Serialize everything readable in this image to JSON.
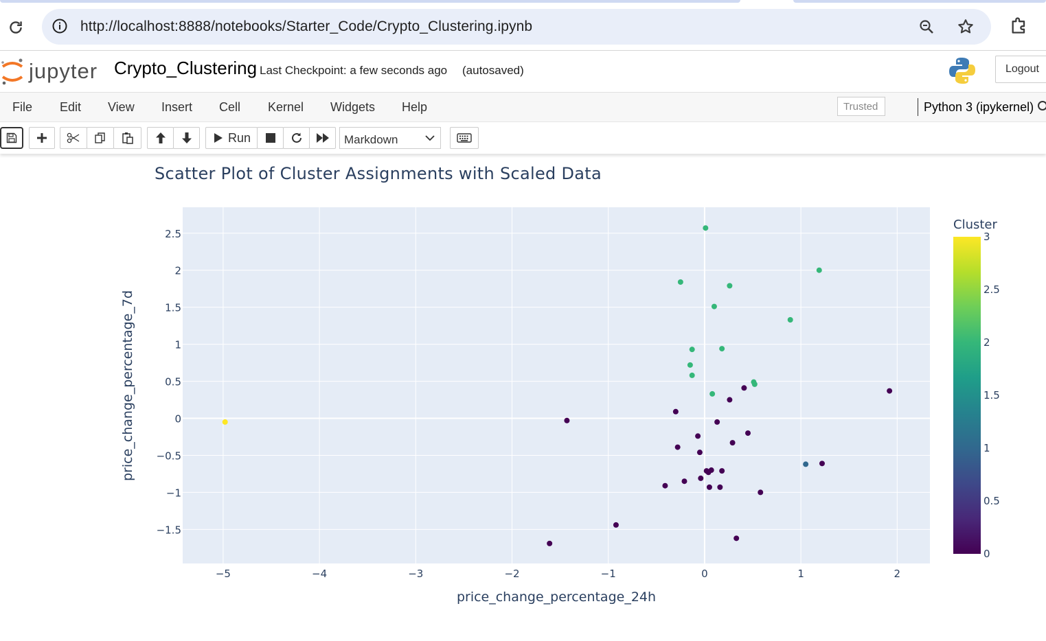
{
  "browser": {
    "url": "http://localhost:8888/notebooks/Starter_Code/Crypto_Clustering.ipynb"
  },
  "jupyter": {
    "logo_text": "jupyter",
    "notebook_title": "Crypto_Clustering",
    "checkpoint": "Last Checkpoint: a few seconds ago",
    "autosaved": "(autosaved)",
    "logout_label": "Logout"
  },
  "menu": {
    "items": [
      "File",
      "Edit",
      "View",
      "Insert",
      "Cell",
      "Kernel",
      "Widgets",
      "Help"
    ],
    "trusted_label": "Trusted",
    "kernel_name": "Python 3 (ipykernel)"
  },
  "toolbar": {
    "run_label": "Run",
    "cell_type": "Markdown"
  },
  "colors": {
    "plot_bg": "#e5ecf6",
    "title": "#2a3f5f",
    "cluster_0": "#440154",
    "cluster_1": "#31688e",
    "cluster_2": "#35b779",
    "cluster_3": "#fde725"
  },
  "chart_data": {
    "type": "scatter",
    "title": "Scatter Plot of Cluster Assignments with Scaled Data",
    "xlabel": "price_change_percentage_24h",
    "ylabel": "price_change_percentage_7d",
    "xlim": [
      -5.42,
      2.34
    ],
    "ylim": [
      -1.96,
      2.85
    ],
    "x_ticks": [
      -5,
      -4,
      -3,
      -2,
      -1,
      0,
      1,
      2
    ],
    "x_tick_labels": [
      "−5",
      "−4",
      "−3",
      "−2",
      "−1",
      "0",
      "1",
      "2"
    ],
    "y_ticks": [
      -1.5,
      -1,
      -0.5,
      0,
      0.5,
      1,
      1.5,
      2,
      2.5
    ],
    "y_tick_labels": [
      "−1.5",
      "−1",
      "−0.5",
      "0",
      "0.5",
      "1",
      "1.5",
      "2",
      "2.5"
    ],
    "grid": true,
    "colorbar": {
      "title": "Cluster",
      "range": [
        0,
        3
      ],
      "ticks": [
        0,
        0.5,
        1,
        1.5,
        2,
        2.5,
        3
      ],
      "tick_labels": [
        "0",
        "0.5",
        "1",
        "1.5",
        "2",
        "2.5",
        "3"
      ],
      "colorscale": "viridis"
    },
    "points": [
      {
        "x": 0.01,
        "y": 2.57,
        "cluster": 2
      },
      {
        "x": 1.19,
        "y": 2.0,
        "cluster": 2
      },
      {
        "x": -0.25,
        "y": 1.84,
        "cluster": 2
      },
      {
        "x": 0.26,
        "y": 1.79,
        "cluster": 2
      },
      {
        "x": 0.1,
        "y": 1.51,
        "cluster": 2
      },
      {
        "x": 0.89,
        "y": 1.33,
        "cluster": 2
      },
      {
        "x": -0.13,
        "y": 0.93,
        "cluster": 2
      },
      {
        "x": 0.18,
        "y": 0.94,
        "cluster": 2
      },
      {
        "x": -0.15,
        "y": 0.72,
        "cluster": 2
      },
      {
        "x": -0.13,
        "y": 0.58,
        "cluster": 2
      },
      {
        "x": 0.51,
        "y": 0.49,
        "cluster": 2
      },
      {
        "x": 0.52,
        "y": 0.46,
        "cluster": 2
      },
      {
        "x": 0.08,
        "y": 0.33,
        "cluster": 2
      },
      {
        "x": -4.98,
        "y": -0.05,
        "cluster": 3
      },
      {
        "x": 1.05,
        "y": -0.62,
        "cluster": 1
      },
      {
        "x": 0.41,
        "y": 0.41,
        "cluster": 0
      },
      {
        "x": 0.26,
        "y": 0.25,
        "cluster": 0
      },
      {
        "x": 1.92,
        "y": 0.37,
        "cluster": 0
      },
      {
        "x": -0.3,
        "y": 0.09,
        "cluster": 0
      },
      {
        "x": -1.43,
        "y": -0.03,
        "cluster": 0
      },
      {
        "x": 0.13,
        "y": -0.05,
        "cluster": 0
      },
      {
        "x": -0.07,
        "y": -0.24,
        "cluster": 0
      },
      {
        "x": 0.45,
        "y": -0.2,
        "cluster": 0
      },
      {
        "x": 0.29,
        "y": -0.33,
        "cluster": 0
      },
      {
        "x": -0.28,
        "y": -0.39,
        "cluster": 0
      },
      {
        "x": -0.05,
        "y": -0.46,
        "cluster": 0
      },
      {
        "x": 1.22,
        "y": -0.61,
        "cluster": 0
      },
      {
        "x": 0.02,
        "y": -0.71,
        "cluster": 0
      },
      {
        "x": 0.07,
        "y": -0.7,
        "cluster": 0
      },
      {
        "x": 0.18,
        "y": -0.71,
        "cluster": 0
      },
      {
        "x": 0.04,
        "y": -0.73,
        "cluster": 0
      },
      {
        "x": -0.04,
        "y": -0.81,
        "cluster": 0
      },
      {
        "x": -0.21,
        "y": -0.85,
        "cluster": 0
      },
      {
        "x": -0.41,
        "y": -0.91,
        "cluster": 0
      },
      {
        "x": 0.05,
        "y": -0.93,
        "cluster": 0
      },
      {
        "x": 0.16,
        "y": -0.93,
        "cluster": 0
      },
      {
        "x": 0.58,
        "y": -1.0,
        "cluster": 0
      },
      {
        "x": -0.92,
        "y": -1.44,
        "cluster": 0
      },
      {
        "x": -1.61,
        "y": -1.69,
        "cluster": 0
      },
      {
        "x": 0.33,
        "y": -1.62,
        "cluster": 0
      }
    ]
  }
}
